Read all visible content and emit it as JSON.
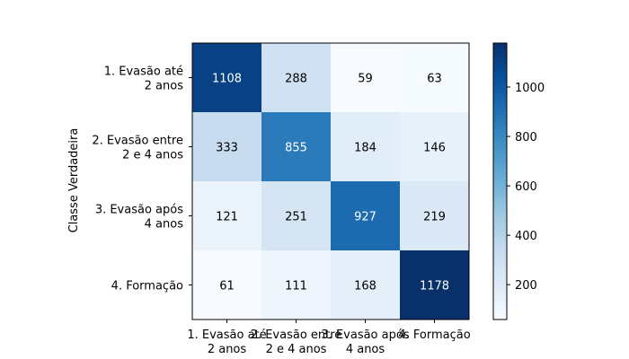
{
  "chart_data": {
    "type": "heatmap",
    "title": "",
    "ylabel": "Classe Verdadeira",
    "xlabel": "",
    "rows": [
      [
        "1. Evasão até",
        "2 anos"
      ],
      [
        "2. Evasão entre",
        "2 e 4 anos"
      ],
      [
        "3. Evasão após",
        "4 anos"
      ],
      [
        "4. Formação"
      ]
    ],
    "columns": [
      [
        "1. Evasão até",
        "2 anos"
      ],
      [
        "2. Evasão entre",
        "2 e 4 anos"
      ],
      [
        "3. Evasão após",
        "4 anos"
      ],
      [
        "4. Formação"
      ]
    ],
    "values": [
      [
        1108,
        288,
        59,
        63
      ],
      [
        333,
        855,
        184,
        146
      ],
      [
        121,
        251,
        927,
        219
      ],
      [
        61,
        111,
        168,
        1178
      ]
    ],
    "colorbar": {
      "range": [
        59,
        1178
      ],
      "ticks": [
        200,
        400,
        600,
        800,
        1000
      ],
      "colormap": "Blues"
    },
    "grid": false,
    "legend": "none"
  }
}
